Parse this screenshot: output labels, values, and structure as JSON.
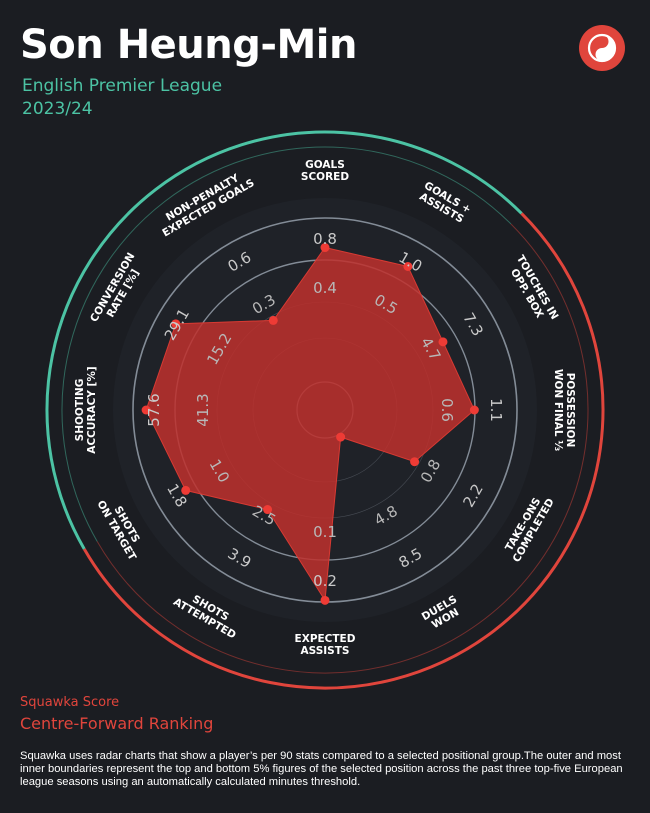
{
  "header": {
    "player_name": "Son Heung-Min",
    "league": "English Premier League",
    "season": "2023/24"
  },
  "logo": {
    "icon": "squawka-logo-icon",
    "color": "#e0453c"
  },
  "colors": {
    "background": "#1b1d22",
    "accent_teal": "#4cc3a4",
    "accent_red": "#e0453c",
    "polygon_fill": "#c0302d",
    "ring": "#8e98a3"
  },
  "chart_data": {
    "type": "radar",
    "categories": [
      "GOALS SCORED",
      "GOALS + ASSISTS",
      "TOUCHES IN OPP. BOX",
      "POSSESSION WON FINAL ⅓",
      "TAKE-ONS COMPLETED",
      "DUELS WON",
      "EXPECTED ASSISTS",
      "SHOTS ATTEMPTED",
      "SHOTS ON TARGET",
      "SHOOTING ACCURACY [%]",
      "CONVERSION RATE [%]",
      "NON-PENALTY EXPECTED GOALS"
    ],
    "outer_ring_labels": [
      "0.8",
      "1.0",
      "7.3",
      "1.1",
      "2.2",
      "8.5",
      "0.2",
      "3.9",
      "1.8",
      "57.6",
      "29.1",
      "0.6"
    ],
    "inner_ring_labels": [
      "0.4",
      "0.5",
      "4.7",
      "0.6",
      "0.8",
      "4.8",
      "0.1",
      "2.5",
      "1.0",
      "41.3",
      "15.2",
      "0.3"
    ],
    "values_normalized": [
      0.82,
      0.84,
      0.66,
      0.74,
      0.46,
      0.02,
      0.99,
      0.53,
      0.81,
      0.92,
      0.88,
      0.46
    ],
    "scale": "percentile within positional group (inner boundary = bottom 5%, outer boundary = top 5%)"
  },
  "footer": {
    "squawka_score": "Squawka Score",
    "ranking": "Centre-Forward Ranking",
    "footnote": "Squawka uses radar charts that show a player’s per 90 stats compared to a selected positional group.The outer and most inner boundaries represent the top and bottom 5% figures of the selected position across the past three top-five European league seasons using an automatically calculated minutes threshold."
  }
}
